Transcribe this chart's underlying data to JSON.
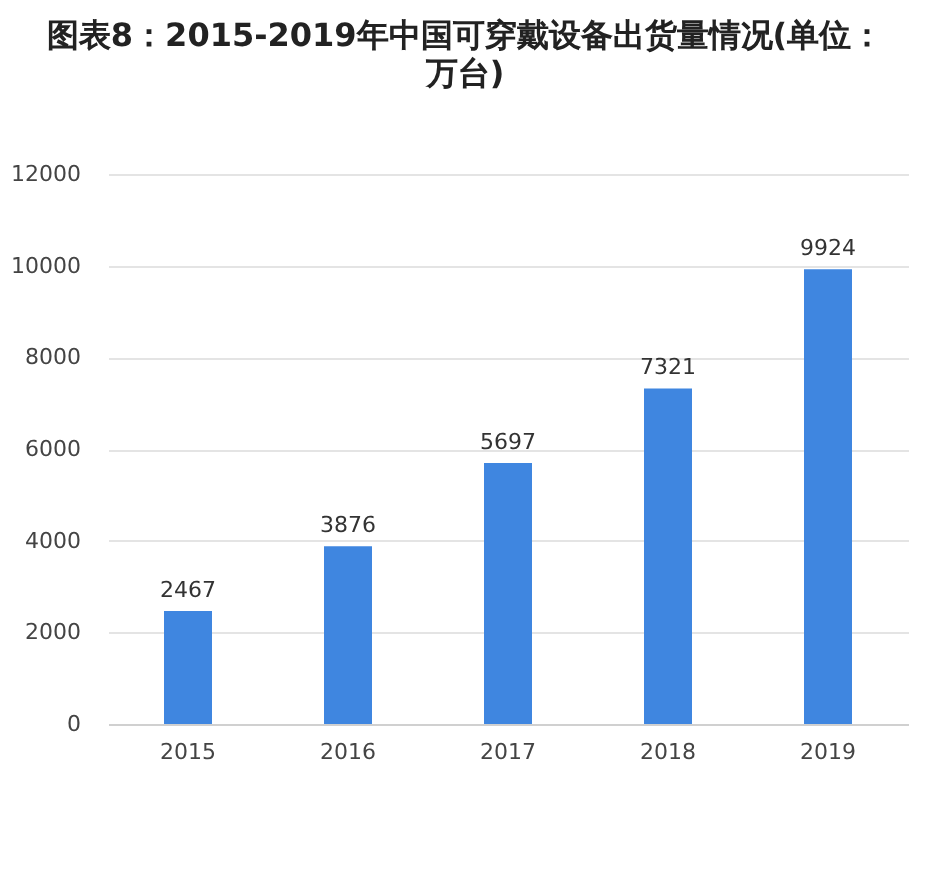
{
  "chart_data": {
    "type": "bar",
    "title": "图表8：2015-2019年中国可穿戴设备出货量情况(单位：万台)",
    "categories": [
      "2015",
      "2016",
      "2017",
      "2018",
      "2019"
    ],
    "values": [
      2467,
      3876,
      5697,
      7321,
      9924
    ],
    "color": "#3f86e0",
    "ylim": [
      0,
      12000
    ],
    "yticks": [
      0,
      2000,
      4000,
      6000,
      8000,
      10000,
      12000
    ],
    "grid": "y",
    "data_labels": true
  }
}
